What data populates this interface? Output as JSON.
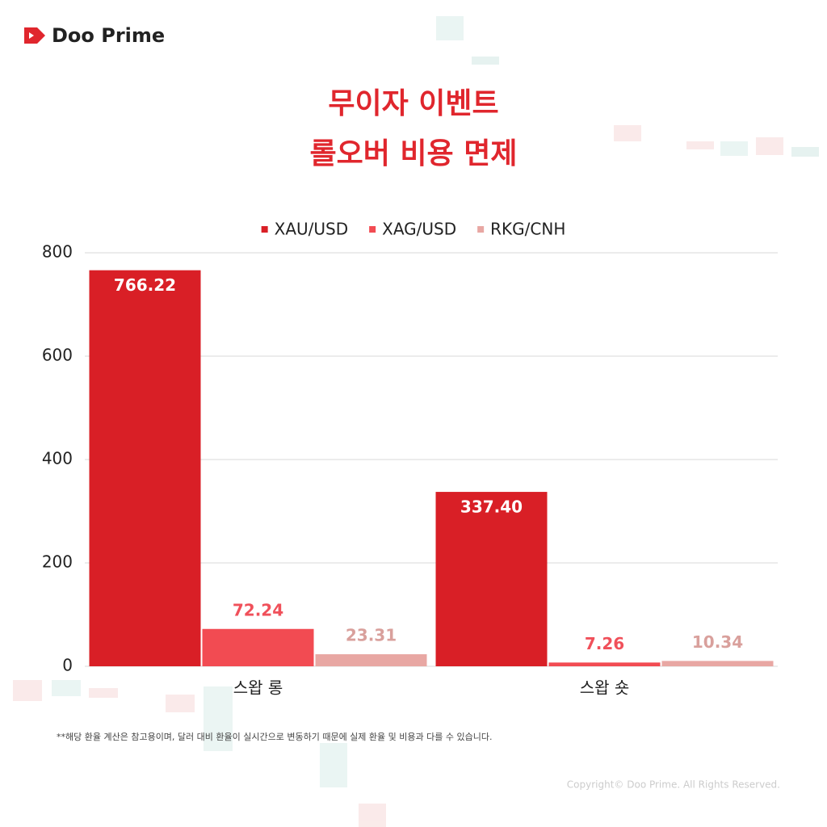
{
  "brand": "Doo Prime",
  "footnote": "**해당 환율 계산은 참고용이며, 달러 대비 환율이 실시간으로 변동하기 때문에 실제 환율 및 비용과 다를 수 있습니다.",
  "copyright": "Copyright© Doo Prime. All Rights Reserved.",
  "chart_data": {
    "type": "bar",
    "title": "무이자 이벤트",
    "subtitle": "롤오버 비용 면제",
    "categories": [
      "스왑 롱",
      "스왑 숏"
    ],
    "series": [
      {
        "name": "XAU/USD",
        "color": "#d91f26",
        "label_color": "#ffffff",
        "values": [
          766.22,
          337.4
        ],
        "value_labels": [
          "766.22",
          "337.40"
        ]
      },
      {
        "name": "XAG/USD",
        "color": "#f24b52",
        "label_color": "#f0505a",
        "values": [
          72.24,
          7.26
        ],
        "value_labels": [
          "72.24",
          "7.26"
        ]
      },
      {
        "name": "RKG/CNH",
        "color": "#e8a7a3",
        "label_color": "#d9a09c",
        "values": [
          23.31,
          10.34
        ],
        "value_labels": [
          "23.31",
          "10.34"
        ]
      }
    ],
    "ylim": [
      0,
      800
    ],
    "yticks": [
      0,
      200,
      400,
      600,
      800
    ],
    "grid": true,
    "legend": "top"
  }
}
